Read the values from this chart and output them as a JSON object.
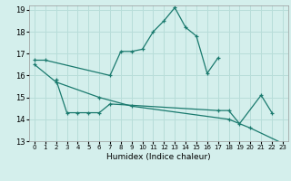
{
  "xlabel": "Humidex (Indice chaleur)",
  "xlim": [
    -0.5,
    23.5
  ],
  "ylim": [
    13,
    19.2
  ],
  "yticks": [
    13,
    14,
    15,
    16,
    17,
    18,
    19
  ],
  "xticks": [
    0,
    1,
    2,
    3,
    4,
    5,
    6,
    7,
    8,
    9,
    10,
    11,
    12,
    13,
    14,
    15,
    16,
    17,
    18,
    19,
    20,
    21,
    22,
    23
  ],
  "bg_color": "#d4efec",
  "grid_color": "#b8ddd9",
  "line_color": "#1a7a6e",
  "line1_x": [
    0,
    1,
    7,
    8,
    9,
    10,
    11,
    12,
    13,
    14,
    15,
    16,
    17
  ],
  "line1_y": [
    16.7,
    16.7,
    16.0,
    17.1,
    17.1,
    17.2,
    18.0,
    18.5,
    19.1,
    18.2,
    17.8,
    16.1,
    16.8
  ],
  "line2_x": [
    2,
    3,
    4,
    5,
    6,
    7,
    17,
    18,
    19,
    21,
    22
  ],
  "line2_y": [
    15.8,
    14.3,
    14.3,
    14.3,
    14.3,
    14.7,
    14.4,
    14.4,
    13.8,
    15.1,
    14.3
  ],
  "line3_x": [
    0,
    2,
    6,
    9,
    18,
    20,
    23
  ],
  "line3_y": [
    16.5,
    15.7,
    15.0,
    14.6,
    14.0,
    13.6,
    12.9
  ]
}
